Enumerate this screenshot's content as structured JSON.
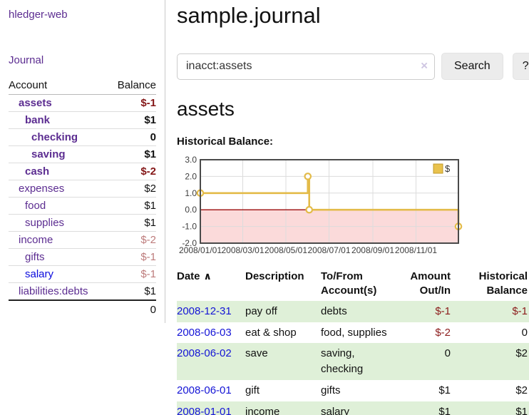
{
  "app": {
    "title": "hledger-web"
  },
  "sidebar": {
    "journal_link": "Journal",
    "table": {
      "account_header": "Account",
      "balance_header": "Balance"
    },
    "accounts": [
      {
        "name": "assets",
        "balance": "$-1",
        "level": 1,
        "bold": true,
        "link_style": "purple",
        "balance_style": "neg-strong"
      },
      {
        "name": "bank",
        "balance": "$1",
        "level": 2,
        "bold": true,
        "link_style": "purple",
        "balance_style": "pos"
      },
      {
        "name": "checking",
        "balance": "0",
        "level": 3,
        "bold": true,
        "link_style": "purple",
        "balance_style": "pos"
      },
      {
        "name": "saving",
        "balance": "$1",
        "level": 3,
        "bold": true,
        "link_style": "purple",
        "balance_style": "pos"
      },
      {
        "name": "cash",
        "balance": "$-2",
        "level": 2,
        "bold": true,
        "link_style": "purple",
        "balance_style": "neg-strong"
      },
      {
        "name": "expenses",
        "balance": "$2",
        "level": 1,
        "bold": false,
        "link_style": "purple",
        "balance_style": "pos"
      },
      {
        "name": "food",
        "balance": "$1",
        "level": 2,
        "bold": false,
        "link_style": "purple",
        "balance_style": "pos"
      },
      {
        "name": "supplies",
        "balance": "$1",
        "level": 2,
        "bold": false,
        "link_style": "purple",
        "balance_style": "pos"
      },
      {
        "name": "income",
        "balance": "$-2",
        "level": 1,
        "bold": false,
        "link_style": "purple",
        "balance_style": "neg-soft"
      },
      {
        "name": "gifts",
        "balance": "$-1",
        "level": 2,
        "bold": false,
        "link_style": "purple",
        "balance_style": "neg-soft"
      },
      {
        "name": "salary",
        "balance": "$-1",
        "level": 2,
        "bold": false,
        "link_style": "blue",
        "balance_style": "neg-soft"
      },
      {
        "name": "liabilities:debts",
        "balance": "$1",
        "level": 1,
        "bold": false,
        "link_style": "purple",
        "balance_style": "pos"
      }
    ],
    "total": "0"
  },
  "header": {
    "title": "sample.journal"
  },
  "search": {
    "value": "inacct:assets",
    "clear_icon": "×",
    "button_label": "Search",
    "help_label": "?"
  },
  "account_page": {
    "title": "assets",
    "chart_label": "Historical Balance:"
  },
  "chart_data": {
    "type": "line",
    "title": "Historical Balance:",
    "step": true,
    "xrange": [
      "2008-01-01",
      "2008-12-31"
    ],
    "ylim": [
      -2,
      3
    ],
    "yticks": [
      3.0,
      2.0,
      1.0,
      0.0,
      -1.0,
      -2.0
    ],
    "xticks": [
      "2008/01/01",
      "2008/03/01",
      "2008/05/01",
      "2008/07/01",
      "2008/09/01",
      "2008/11/01"
    ],
    "series": [
      {
        "name": "$",
        "color": "#e3bb49",
        "points": [
          [
            "2008-01-01",
            1.0
          ],
          [
            "2008-06-01",
            2.0
          ],
          [
            "2008-06-03",
            0.0
          ],
          [
            "2008-12-31",
            -1.0
          ]
        ]
      }
    ],
    "legend_position": "top-right",
    "grid": true,
    "negative_region_fill": "#fbdada",
    "zero_line_color": "#9c0d0d"
  },
  "register": {
    "columns": {
      "date": "Date",
      "sort_icon": "∧",
      "description": "Description",
      "accounts": "To/From Account(s)",
      "amount": "Amount Out/In",
      "balance": "Historical Balance"
    },
    "rows": [
      {
        "date": "2008-12-31",
        "description": "pay off",
        "accounts": "debts",
        "amount": "$-1",
        "amount_style": "neg",
        "balance": "$-1",
        "balance_style": "pos neg",
        "shaded": true
      },
      {
        "date": "2008-06-03",
        "description": "eat & shop",
        "accounts": "food, supplies",
        "amount": "$-2",
        "amount_style": "neg",
        "balance": "0",
        "balance_style": "pos",
        "shaded": false
      },
      {
        "date": "2008-06-02",
        "description": "save",
        "accounts": "saving, checking",
        "amount": "0",
        "amount_style": "pos",
        "balance": "$2",
        "balance_style": "pos",
        "shaded": true
      },
      {
        "date": "2008-06-01",
        "description": "gift",
        "accounts": "gifts",
        "amount": "$1",
        "amount_style": "pos",
        "balance": "$2",
        "balance_style": "pos",
        "shaded": false
      },
      {
        "date": "2008-01-01",
        "description": "income",
        "accounts": "salary",
        "amount": "$1",
        "amount_style": "pos",
        "balance": "$1",
        "balance_style": "pos",
        "shaded": true
      }
    ]
  },
  "colors": {
    "link_purple": "#5c2d91",
    "link_blue": "#0b0bdd",
    "negative_strong": "#841617",
    "negative_soft": "#bd7b7b",
    "register_stripe": "#dff0d8",
    "chart_line": "#e3bb49",
    "chart_negative_fill": "#fbdada",
    "chart_zero_line": "#9c0d0d",
    "button_bg": "#ececec"
  }
}
